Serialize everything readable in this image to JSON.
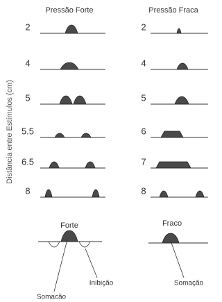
{
  "axis_label": "Distância entre Estímulos (cm)",
  "columns": [
    {
      "title": "Pressão Forte",
      "rows": [
        2,
        4,
        5,
        5.5,
        6.5,
        8
      ],
      "summary": {
        "title": "Forte",
        "labels": [
          "Somacão",
          "Inibição"
        ]
      }
    },
    {
      "title": "Pressão Fraca",
      "rows": [
        2,
        4,
        5,
        6,
        7,
        8
      ],
      "summary": {
        "title": "Fraco",
        "labels": [
          "Somação"
        ]
      }
    }
  ]
}
